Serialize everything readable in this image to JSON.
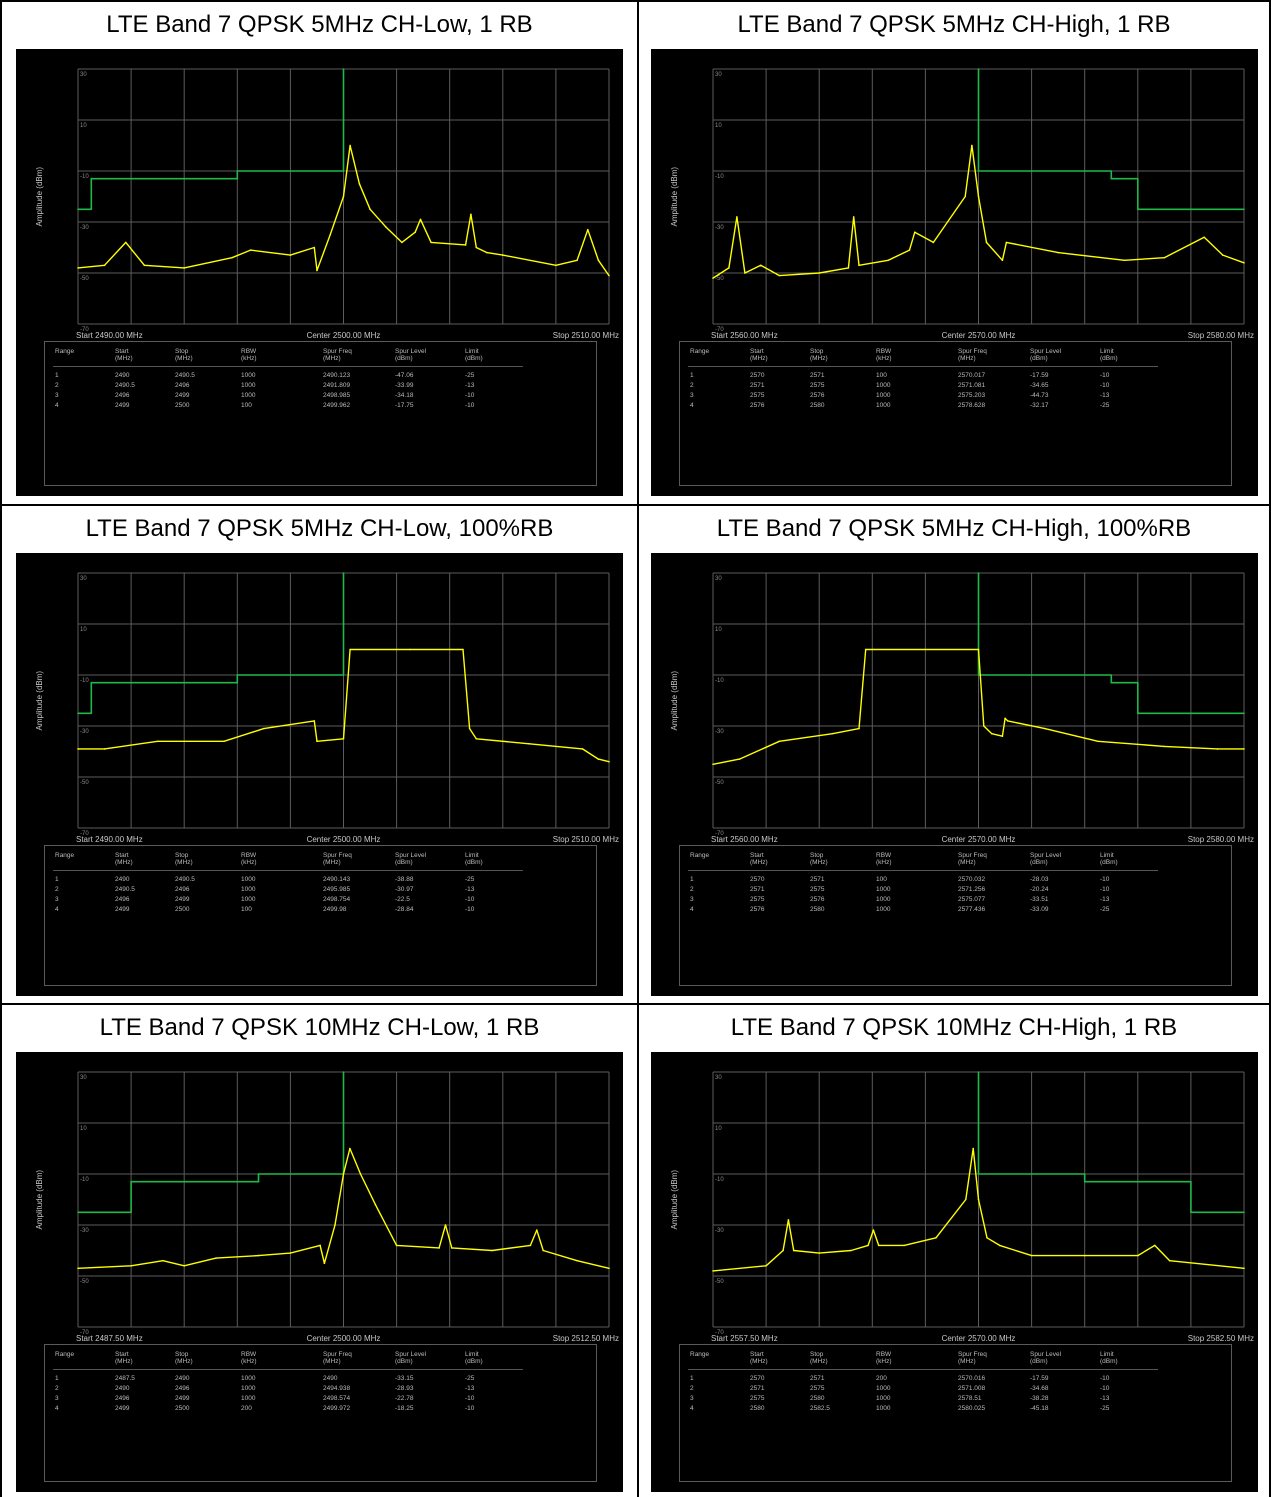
{
  "panels": [
    {
      "caption": "LTE Band 7 QPSK 5MHz CH-Low, 1 RB",
      "x_start_label": "Start 2490.00 MHz",
      "x_center_label": "Center 2500.00 MHz",
      "x_stop_label": "Stop 2510.00 MHz",
      "ylabel": "Amplitude (dBm)",
      "headers": [
        "Range",
        "Start\n(MHz)",
        "Stop\n(MHz)",
        "RBW\n(kHz)",
        "Spur Freq\n(MHz)",
        "Spur Level\n(dBm)",
        "Limit\n(dBm)"
      ],
      "rows": [
        [
          "1",
          "2490",
          "2490.5",
          "1000",
          "2490.123",
          "-47.06",
          "-25"
        ],
        [
          "2",
          "2490.5",
          "2496",
          "1000",
          "2491.809",
          "-33.99",
          "-13"
        ],
        [
          "3",
          "2496",
          "2499",
          "1000",
          "2498.985",
          "-34.18",
          "-10"
        ],
        [
          "4",
          "2499",
          "2500",
          "100",
          "2499.962",
          "-17.75",
          "-10"
        ]
      ]
    },
    {
      "caption": "LTE Band 7 QPSK 5MHz CH-High, 1 RB",
      "x_start_label": "Start 2560.00 MHz",
      "x_center_label": "Center 2570.00 MHz",
      "x_stop_label": "Stop 2580.00 MHz",
      "ylabel": "Amplitude (dBm)",
      "headers": [
        "Range",
        "Start\n(MHz)",
        "Stop\n(MHz)",
        "RBW\n(kHz)",
        "Spur Freq\n(MHz)",
        "Spur Level\n(dBm)",
        "Limit\n(dBm)"
      ],
      "rows": [
        [
          "1",
          "2570",
          "2571",
          "100",
          "2570.017",
          "-17.59",
          "-10"
        ],
        [
          "2",
          "2571",
          "2575",
          "1000",
          "2571.081",
          "-34.65",
          "-10"
        ],
        [
          "3",
          "2575",
          "2576",
          "1000",
          "2575.203",
          "-44.73",
          "-13"
        ],
        [
          "4",
          "2576",
          "2580",
          "1000",
          "2578.628",
          "-32.17",
          "-25"
        ]
      ]
    },
    {
      "caption": "LTE Band 7 QPSK 5MHz CH-Low, 100%RB",
      "x_start_label": "Start 2490.00 MHz",
      "x_center_label": "Center 2500.00 MHz",
      "x_stop_label": "Stop 2510.00 MHz",
      "ylabel": "Amplitude (dBm)",
      "headers": [
        "Range",
        "Start\n(MHz)",
        "Stop\n(MHz)",
        "RBW\n(kHz)",
        "Spur Freq\n(MHz)",
        "Spur Level\n(dBm)",
        "Limit\n(dBm)"
      ],
      "rows": [
        [
          "1",
          "2490",
          "2490.5",
          "1000",
          "2490.143",
          "-38.88",
          "-25"
        ],
        [
          "2",
          "2490.5",
          "2496",
          "1000",
          "2495.985",
          "-30.97",
          "-13"
        ],
        [
          "3",
          "2496",
          "2499",
          "1000",
          "2498.754",
          "-22.5",
          "-10"
        ],
        [
          "4",
          "2499",
          "2500",
          "100",
          "2499.98",
          "-28.84",
          "-10"
        ]
      ]
    },
    {
      "caption": "LTE Band 7 QPSK 5MHz CH-High, 100%RB",
      "x_start_label": "Start 2560.00 MHz",
      "x_center_label": "Center 2570.00 MHz",
      "x_stop_label": "Stop 2580.00 MHz",
      "ylabel": "Amplitude (dBm)",
      "headers": [
        "Range",
        "Start\n(MHz)",
        "Stop\n(MHz)",
        "RBW\n(kHz)",
        "Spur Freq\n(MHz)",
        "Spur Level\n(dBm)",
        "Limit\n(dBm)"
      ],
      "rows": [
        [
          "1",
          "2570",
          "2571",
          "100",
          "2570.032",
          "-28.03",
          "-10"
        ],
        [
          "2",
          "2571",
          "2575",
          "1000",
          "2571.256",
          "-20.24",
          "-10"
        ],
        [
          "3",
          "2575",
          "2576",
          "1000",
          "2575.077",
          "-33.51",
          "-13"
        ],
        [
          "4",
          "2576",
          "2580",
          "1000",
          "2577.436",
          "-33.09",
          "-25"
        ]
      ]
    },
    {
      "caption": "LTE Band 7 QPSK 10MHz CH-Low, 1 RB",
      "x_start_label": "Start 2487.50 MHz",
      "x_center_label": "Center 2500.00 MHz",
      "x_stop_label": "Stop 2512.50 MHz",
      "ylabel": "Amplitude (dBm)",
      "headers": [
        "Range",
        "Start\n(MHz)",
        "Stop\n(MHz)",
        "RBW\n(kHz)",
        "Spur Freq\n(MHz)",
        "Spur Level\n(dBm)",
        "Limit\n(dBm)"
      ],
      "rows": [
        [
          "1",
          "2487.5",
          "2490",
          "1000",
          "2490",
          "-33.15",
          "-25"
        ],
        [
          "2",
          "2490",
          "2496",
          "1000",
          "2494.938",
          "-28.93",
          "-13"
        ],
        [
          "3",
          "2496",
          "2499",
          "1000",
          "2498.574",
          "-22.78",
          "-10"
        ],
        [
          "4",
          "2499",
          "2500",
          "200",
          "2499.972",
          "-18.25",
          "-10"
        ]
      ]
    },
    {
      "caption": "LTE Band 7 QPSK 10MHz CH-High, 1 RB",
      "x_start_label": "Start 2557.50 MHz",
      "x_center_label": "Center 2570.00 MHz",
      "x_stop_label": "Stop 2582.50 MHz",
      "ylabel": "Amplitude (dBm)",
      "headers": [
        "Range",
        "Start\n(MHz)",
        "Stop\n(MHz)",
        "RBW\n(kHz)",
        "Spur Freq\n(MHz)",
        "Spur Level\n(dBm)",
        "Limit\n(dBm)"
      ],
      "rows": [
        [
          "1",
          "2570",
          "2571",
          "200",
          "2570.016",
          "-17.59",
          "-10"
        ],
        [
          "2",
          "2571",
          "2575",
          "1000",
          "2571.008",
          "-34.68",
          "-10"
        ],
        [
          "3",
          "2575",
          "2580",
          "1000",
          "2578.51",
          "-38.28",
          "-13"
        ],
        [
          "4",
          "2580",
          "2582.5",
          "1000",
          "2580.025",
          "-45.18",
          "-25"
        ]
      ]
    }
  ],
  "chart_data": [
    {
      "type": "line",
      "xlim": [
        2490,
        2510
      ],
      "ylim": [
        -70,
        30
      ],
      "yticks": [
        "30",
        "10",
        "-10",
        "-30",
        "-50",
        "-70"
      ],
      "series": [
        {
          "role": "limit",
          "color": "#1fb94a",
          "x": [
            2490,
            2490.5,
            2490.5,
            2496,
            2496,
            2500,
            2500
          ],
          "y": [
            -25,
            -25,
            -13,
            -13,
            -10,
            -10,
            30
          ]
        },
        {
          "role": "trace",
          "color": "#ffff00",
          "x": [
            2490,
            2491,
            2491.8,
            2492.5,
            2494,
            2495.8,
            2496.5,
            2498,
            2498.9,
            2499,
            2499.5,
            2500,
            2500.25,
            2500.6,
            2501,
            2501.6,
            2502.2,
            2502.7,
            2502.9,
            2503.3,
            2504.6,
            2504.8,
            2505,
            2505.4,
            2506,
            2508,
            2508.8,
            2509.2,
            2509.6,
            2510
          ],
          "y": [
            -48,
            -47,
            -38,
            -47,
            -48,
            -44,
            -41,
            -43,
            -40,
            -49,
            -35,
            -20,
            0,
            -15,
            -25,
            -32,
            -38,
            -34,
            -29,
            -38,
            -39,
            -27,
            -40,
            -42,
            -43,
            -47,
            -45,
            -33,
            -45,
            -51
          ]
        }
      ]
    },
    {
      "type": "line",
      "xlim": [
        2560,
        2580
      ],
      "ylim": [
        -70,
        30
      ],
      "yticks": [
        "30",
        "10",
        "-10",
        "-30",
        "-50",
        "-70"
      ],
      "series": [
        {
          "role": "limit",
          "color": "#1fb94a",
          "x": [
            2570,
            2570,
            2575,
            2575,
            2576,
            2576,
            2580
          ],
          "y": [
            30,
            -10,
            -10,
            -13,
            -13,
            -25,
            -25
          ]
        },
        {
          "role": "trace",
          "color": "#ffff00",
          "x": [
            2560,
            2560.6,
            2560.9,
            2561.2,
            2561.8,
            2562.5,
            2564,
            2565.1,
            2565.3,
            2565.5,
            2566.6,
            2567.4,
            2567.6,
            2568.3,
            2569.5,
            2569.75,
            2570,
            2570.3,
            2570.9,
            2571.05,
            2573,
            2575.5,
            2577,
            2578.5,
            2579.2,
            2580
          ],
          "y": [
            -52,
            -48,
            -28,
            -50,
            -47,
            -51,
            -50,
            -48,
            -28,
            -47,
            -45,
            -41,
            -34,
            -38,
            -20,
            0,
            -20,
            -38,
            -45,
            -38,
            -42,
            -45,
            -44,
            -36,
            -43,
            -46
          ]
        }
      ]
    },
    {
      "type": "line",
      "xlim": [
        2490,
        2510
      ],
      "ylim": [
        -70,
        30
      ],
      "yticks": [
        "30",
        "10",
        "-10",
        "-30",
        "-50",
        "-70"
      ],
      "series": [
        {
          "role": "limit",
          "color": "#1fb94a",
          "x": [
            2490,
            2490.5,
            2490.5,
            2496,
            2496,
            2500,
            2500
          ],
          "y": [
            -25,
            -25,
            -13,
            -13,
            -10,
            -10,
            30
          ]
        },
        {
          "role": "trace",
          "color": "#ffff00",
          "x": [
            2490,
            2491,
            2493,
            2495.5,
            2497,
            2498.9,
            2499,
            2500,
            2500.25,
            2502.5,
            2504.5,
            2504.75,
            2505,
            2507,
            2509,
            2509.6,
            2510
          ],
          "y": [
            -39,
            -39,
            -36,
            -36,
            -31,
            -28,
            -36,
            -35,
            0,
            0,
            0,
            -31,
            -35,
            -37,
            -39,
            -43,
            -44
          ]
        }
      ]
    },
    {
      "type": "line",
      "xlim": [
        2560,
        2580
      ],
      "ylim": [
        -70,
        30
      ],
      "yticks": [
        "30",
        "10",
        "-10",
        "-30",
        "-50",
        "-70"
      ],
      "series": [
        {
          "role": "limit",
          "color": "#1fb94a",
          "x": [
            2570,
            2570,
            2575,
            2575,
            2576,
            2576,
            2580
          ],
          "y": [
            30,
            -10,
            -10,
            -13,
            -13,
            -25,
            -25
          ]
        },
        {
          "role": "trace",
          "color": "#ffff00",
          "x": [
            2560,
            2561,
            2562.5,
            2564.5,
            2565.5,
            2565.75,
            2570,
            2570.2,
            2570.5,
            2570.9,
            2571,
            2571.1,
            2572.5,
            2574.5,
            2577,
            2579,
            2580
          ],
          "y": [
            -45,
            -43,
            -36,
            -33,
            -31,
            0,
            0,
            -30,
            -33,
            -34,
            -27,
            -28,
            -31,
            -36,
            -38,
            -39,
            -39
          ]
        }
      ]
    },
    {
      "type": "line",
      "xlim": [
        2487.5,
        2512.5
      ],
      "ylim": [
        -70,
        30
      ],
      "yticks": [
        "30",
        "10",
        "-10",
        "-30",
        "-50",
        "-70"
      ],
      "series": [
        {
          "role": "limit",
          "color": "#1fb94a",
          "x": [
            2487.5,
            2490,
            2490,
            2496,
            2496,
            2500,
            2500
          ],
          "y": [
            -25,
            -25,
            -13,
            -13,
            -10,
            -10,
            30
          ]
        },
        {
          "role": "trace",
          "color": "#ffff00",
          "x": [
            2487.5,
            2490,
            2491.5,
            2492.5,
            2494,
            2496,
            2497.5,
            2498.9,
            2499.1,
            2499.6,
            2500,
            2500.3,
            2500.8,
            2501.5,
            2502.5,
            2504.5,
            2504.8,
            2505.1,
            2507,
            2508.8,
            2509.1,
            2509.4,
            2511,
            2512.5
          ],
          "y": [
            -47,
            -46,
            -44,
            -46,
            -43,
            -42,
            -41,
            -38,
            -45,
            -30,
            -10,
            0,
            -10,
            -22,
            -38,
            -39,
            -30,
            -39,
            -40,
            -38,
            -32,
            -40,
            -44,
            -47
          ]
        }
      ]
    },
    {
      "type": "line",
      "xlim": [
        2557.5,
        2582.5
      ],
      "ylim": [
        -70,
        30
      ],
      "yticks": [
        "30",
        "10",
        "-10",
        "-30",
        "-50",
        "-70"
      ],
      "series": [
        {
          "role": "limit",
          "color": "#1fb94a",
          "x": [
            2570,
            2570,
            2575,
            2575,
            2580,
            2580,
            2582.5
          ],
          "y": [
            30,
            -10,
            -10,
            -13,
            -13,
            -25,
            -25
          ]
        },
        {
          "role": "trace",
          "color": "#ffff00",
          "x": [
            2557.5,
            2560,
            2560.8,
            2561.05,
            2561.3,
            2562.5,
            2564,
            2564.8,
            2565.05,
            2565.3,
            2566.5,
            2568,
            2569.4,
            2569.75,
            2570,
            2570.4,
            2571,
            2572.5,
            2575,
            2577.5,
            2578.3,
            2579,
            2582.5
          ],
          "y": [
            -48,
            -46,
            -40,
            -28,
            -40,
            -41,
            -40,
            -38,
            -32,
            -38,
            -38,
            -35,
            -20,
            0,
            -20,
            -35,
            -38,
            -42,
            -42,
            -42,
            -38,
            -44,
            -47
          ]
        }
      ]
    }
  ]
}
